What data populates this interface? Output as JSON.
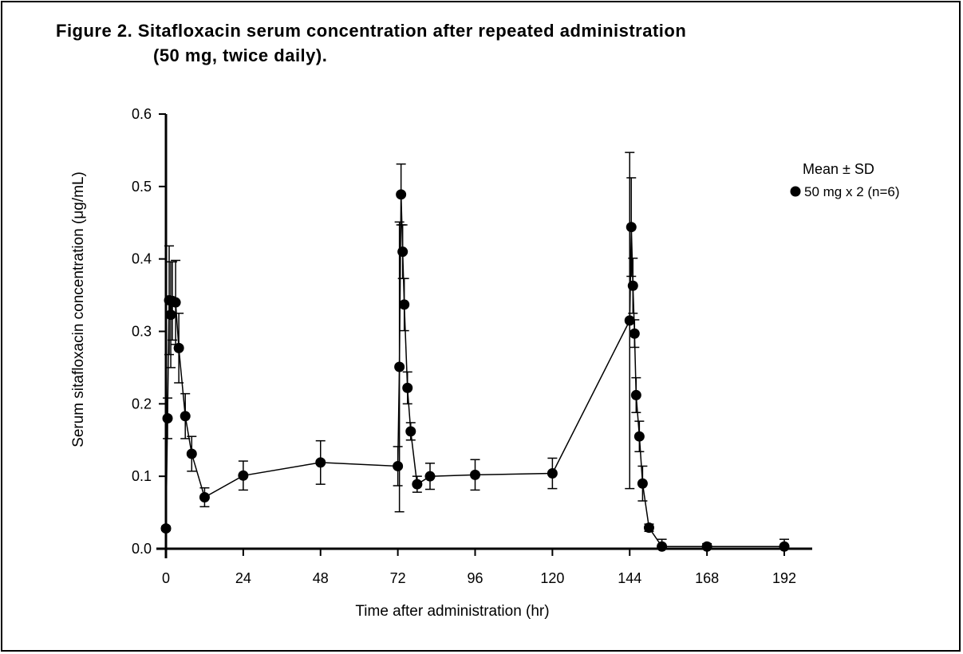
{
  "title_line1": "Figure 2. Sitafloxacin serum concentration after repeated administration",
  "title_line2": "(50 mg, twice daily).",
  "chart_data": {
    "type": "line",
    "title": "Figure 2. Sitafloxacin serum concentration after repeated administration (50 mg, twice daily).",
    "xlabel": "Time after administration (hr)",
    "ylabel": "Serum sitafloxacin concentration (μg/mL)",
    "xlim": [
      0,
      192
    ],
    "ylim": [
      0,
      0.6
    ],
    "xticks": [
      0,
      24,
      48,
      72,
      96,
      120,
      144,
      168,
      192
    ],
    "yticks": [
      0.0,
      0.1,
      0.2,
      0.3,
      0.4,
      0.5,
      0.6
    ],
    "ytick_labels": [
      "0.0",
      "0.1",
      "0.2",
      "0.3",
      "0.4",
      "0.5",
      "0.6"
    ],
    "grid": false,
    "legend_title": "Mean ± SD",
    "legend_position": "top-right",
    "series": [
      {
        "name": "50 mg x 2 (n=6)",
        "marker": "circle",
        "color": "#000000",
        "x": [
          0,
          0.5,
          1,
          1.5,
          2,
          3,
          4,
          6,
          8,
          12,
          24,
          48,
          72,
          72.5,
          73,
          73.5,
          74,
          75,
          76,
          78,
          82,
          96,
          120,
          144,
          144.5,
          145,
          145.5,
          146,
          147,
          148,
          150,
          154,
          168,
          192
        ],
        "y": [
          0.028,
          0.18,
          0.343,
          0.323,
          0.342,
          0.34,
          0.277,
          0.183,
          0.131,
          0.071,
          0.101,
          0.119,
          0.114,
          0.251,
          0.489,
          0.41,
          0.337,
          0.222,
          0.162,
          0.089,
          0.1,
          0.102,
          0.104,
          0.315,
          0.444,
          0.363,
          0.297,
          0.212,
          0.155,
          0.09,
          0.029,
          0.003,
          0.003,
          0.003
        ],
        "sd": [
          0.003,
          0.028,
          0.075,
          0.073,
          0.054,
          0.058,
          0.048,
          0.031,
          0.024,
          0.013,
          0.02,
          0.03,
          0.027,
          0.2,
          0.042,
          0.037,
          0.036,
          0.022,
          0.012,
          0.011,
          0.018,
          0.021,
          0.021,
          0.232,
          0.068,
          0.038,
          0.019,
          0.024,
          0.021,
          0.024,
          0.005,
          0.01,
          0.004,
          0.01
        ]
      }
    ]
  }
}
